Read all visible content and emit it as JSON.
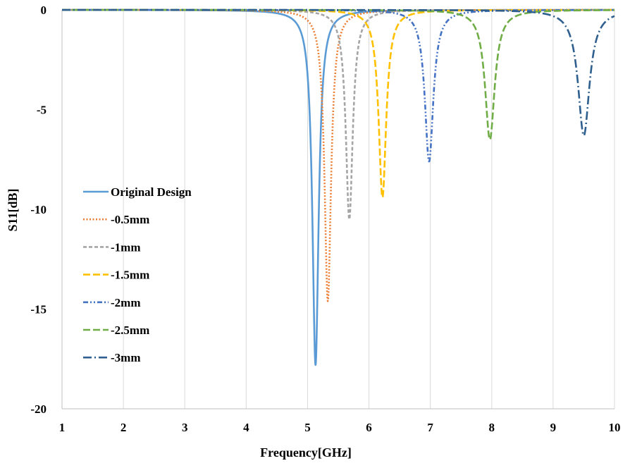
{
  "chart_data": {
    "type": "line",
    "title": "",
    "xlabel": "Frequency[GHz]",
    "ylabel": "S11[dB]",
    "xlim": [
      1,
      10
    ],
    "ylim": [
      -20,
      0
    ],
    "x_ticks": [
      "1",
      "2",
      "3",
      "4",
      "5",
      "6",
      "7",
      "8",
      "9",
      "10"
    ],
    "y_ticks": [
      "0",
      "-5",
      "-10",
      "-15",
      "-20"
    ],
    "grid": "vertical",
    "legend_position": "left-middle",
    "series": [
      {
        "name": "Original Design",
        "resonance_ghz": 5.13,
        "min_db": -17.8,
        "color": "#5b9bd5",
        "dash": "solid"
      },
      {
        "name": "-0.5mm",
        "resonance_ghz": 5.33,
        "min_db": -14.6,
        "color": "#ed7d31",
        "dash": "dotted"
      },
      {
        "name": "-1mm",
        "resonance_ghz": 5.68,
        "min_db": -10.5,
        "color": "#a5a5a5",
        "dash": "dashed"
      },
      {
        "name": "-1.5mm",
        "resonance_ghz": 6.22,
        "min_db": -9.4,
        "color": "#ffc000",
        "dash": "long-dash"
      },
      {
        "name": "-2mm",
        "resonance_ghz": 6.98,
        "min_db": -7.6,
        "color": "#4472c4",
        "dash": "dash-dot-dot"
      },
      {
        "name": "-2.5mm",
        "resonance_ghz": 7.97,
        "min_db": -6.5,
        "color": "#70ad47",
        "dash": "long-dash"
      },
      {
        "name": "-3mm",
        "resonance_ghz": 9.5,
        "min_db": -6.3,
        "color": "#2e5f8f",
        "dash": "long-dash-dot"
      }
    ]
  }
}
